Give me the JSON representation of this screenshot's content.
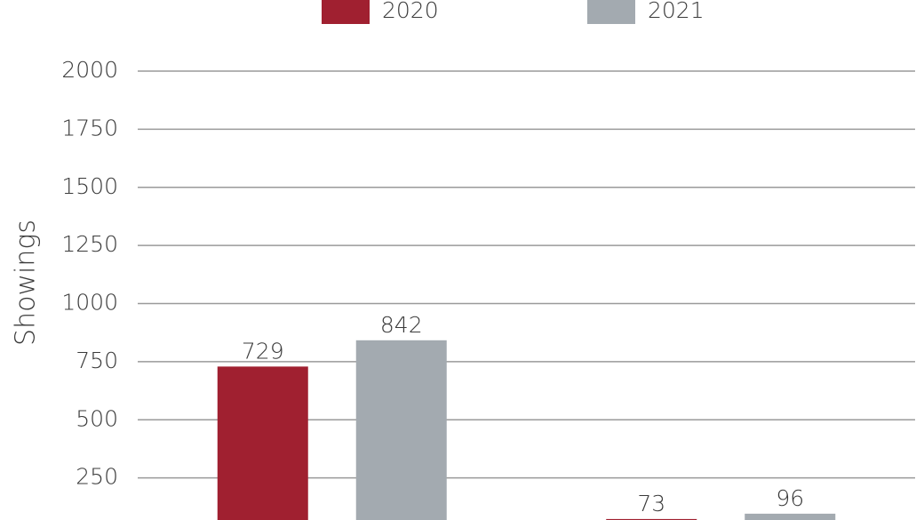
{
  "chart_data": {
    "type": "bar",
    "y_label": "Showings",
    "categories": [
      null,
      null
    ],
    "series": [
      {
        "name": "2020",
        "color": "#a02030",
        "values": [
          729,
          73
        ]
      },
      {
        "name": "2021",
        "color": "#a3aab0",
        "values": [
          842,
          96
        ]
      }
    ],
    "ylim": [
      0,
      2000
    ],
    "yticks": [
      250,
      500,
      750,
      1000,
      1250,
      1500,
      1750,
      2000
    ],
    "grid": true,
    "legend": "top"
  }
}
